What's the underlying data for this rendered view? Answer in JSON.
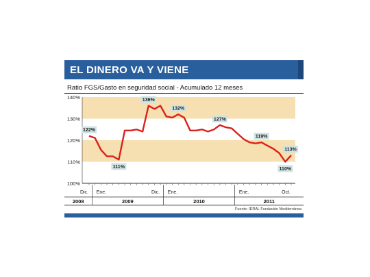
{
  "header": {
    "title": "EL DINERO VA Y VIENE",
    "subtitle": "Ratio FGS/Gasto en seguridad social - Acumulado 12 meses"
  },
  "source": "Fuente: IERAL Fundación Mediterránea",
  "colors": {
    "banner": "#2a5f9e",
    "band": "#f6dfb0",
    "line": "#d9201c",
    "label_box": "#cfe3e3"
  },
  "chart_data": {
    "type": "line",
    "title": "",
    "ylim": [
      100,
      140
    ],
    "yticks": [
      "100%",
      "110%",
      "120%",
      "130%",
      "140%"
    ],
    "bands": [
      [
        120,
        130,
        "white"
      ],
      [
        110,
        120,
        "shaded"
      ],
      [
        130,
        140,
        "shaded"
      ]
    ],
    "month_labels": [
      {
        "index": 0,
        "text": "Dic."
      },
      {
        "index": 1,
        "text": "Ene."
      },
      {
        "index": 12,
        "text": "Dic."
      },
      {
        "index": 13,
        "text": "Ene."
      },
      {
        "index": 25,
        "text": "Ene."
      },
      {
        "index": 34,
        "text": "Oct."
      }
    ],
    "year_labels": [
      {
        "start": 0,
        "end": 0,
        "text": "2008"
      },
      {
        "start": 1,
        "end": 12,
        "text": "2009"
      },
      {
        "start": 13,
        "end": 24,
        "text": "2010"
      },
      {
        "start": 25,
        "end": 34,
        "text": "2011"
      }
    ],
    "series": [
      {
        "values": [
          122,
          121,
          115.5,
          112.5,
          112.5,
          111,
          124.5,
          124.5,
          125,
          124,
          136,
          134.5,
          136,
          131,
          130.5,
          132,
          130.5,
          124.5,
          124.5,
          125,
          124,
          125,
          127,
          126,
          125.5,
          123,
          120.5,
          119,
          118.5,
          119,
          117.5,
          116,
          114,
          110,
          113
        ]
      }
    ],
    "annotations": [
      {
        "index": 0,
        "text": "122%",
        "pos": "above"
      },
      {
        "index": 5,
        "text": "111%",
        "pos": "below"
      },
      {
        "index": 10,
        "text": "136%",
        "pos": "above"
      },
      {
        "index": 15,
        "text": "132%",
        "pos": "above"
      },
      {
        "index": 22,
        "text": "127%",
        "pos": "above"
      },
      {
        "index": 29,
        "text": "119%",
        "pos": "above"
      },
      {
        "index": 33,
        "text": "110%",
        "pos": "below"
      },
      {
        "index": 34,
        "text": "113%",
        "pos": "above"
      }
    ]
  }
}
